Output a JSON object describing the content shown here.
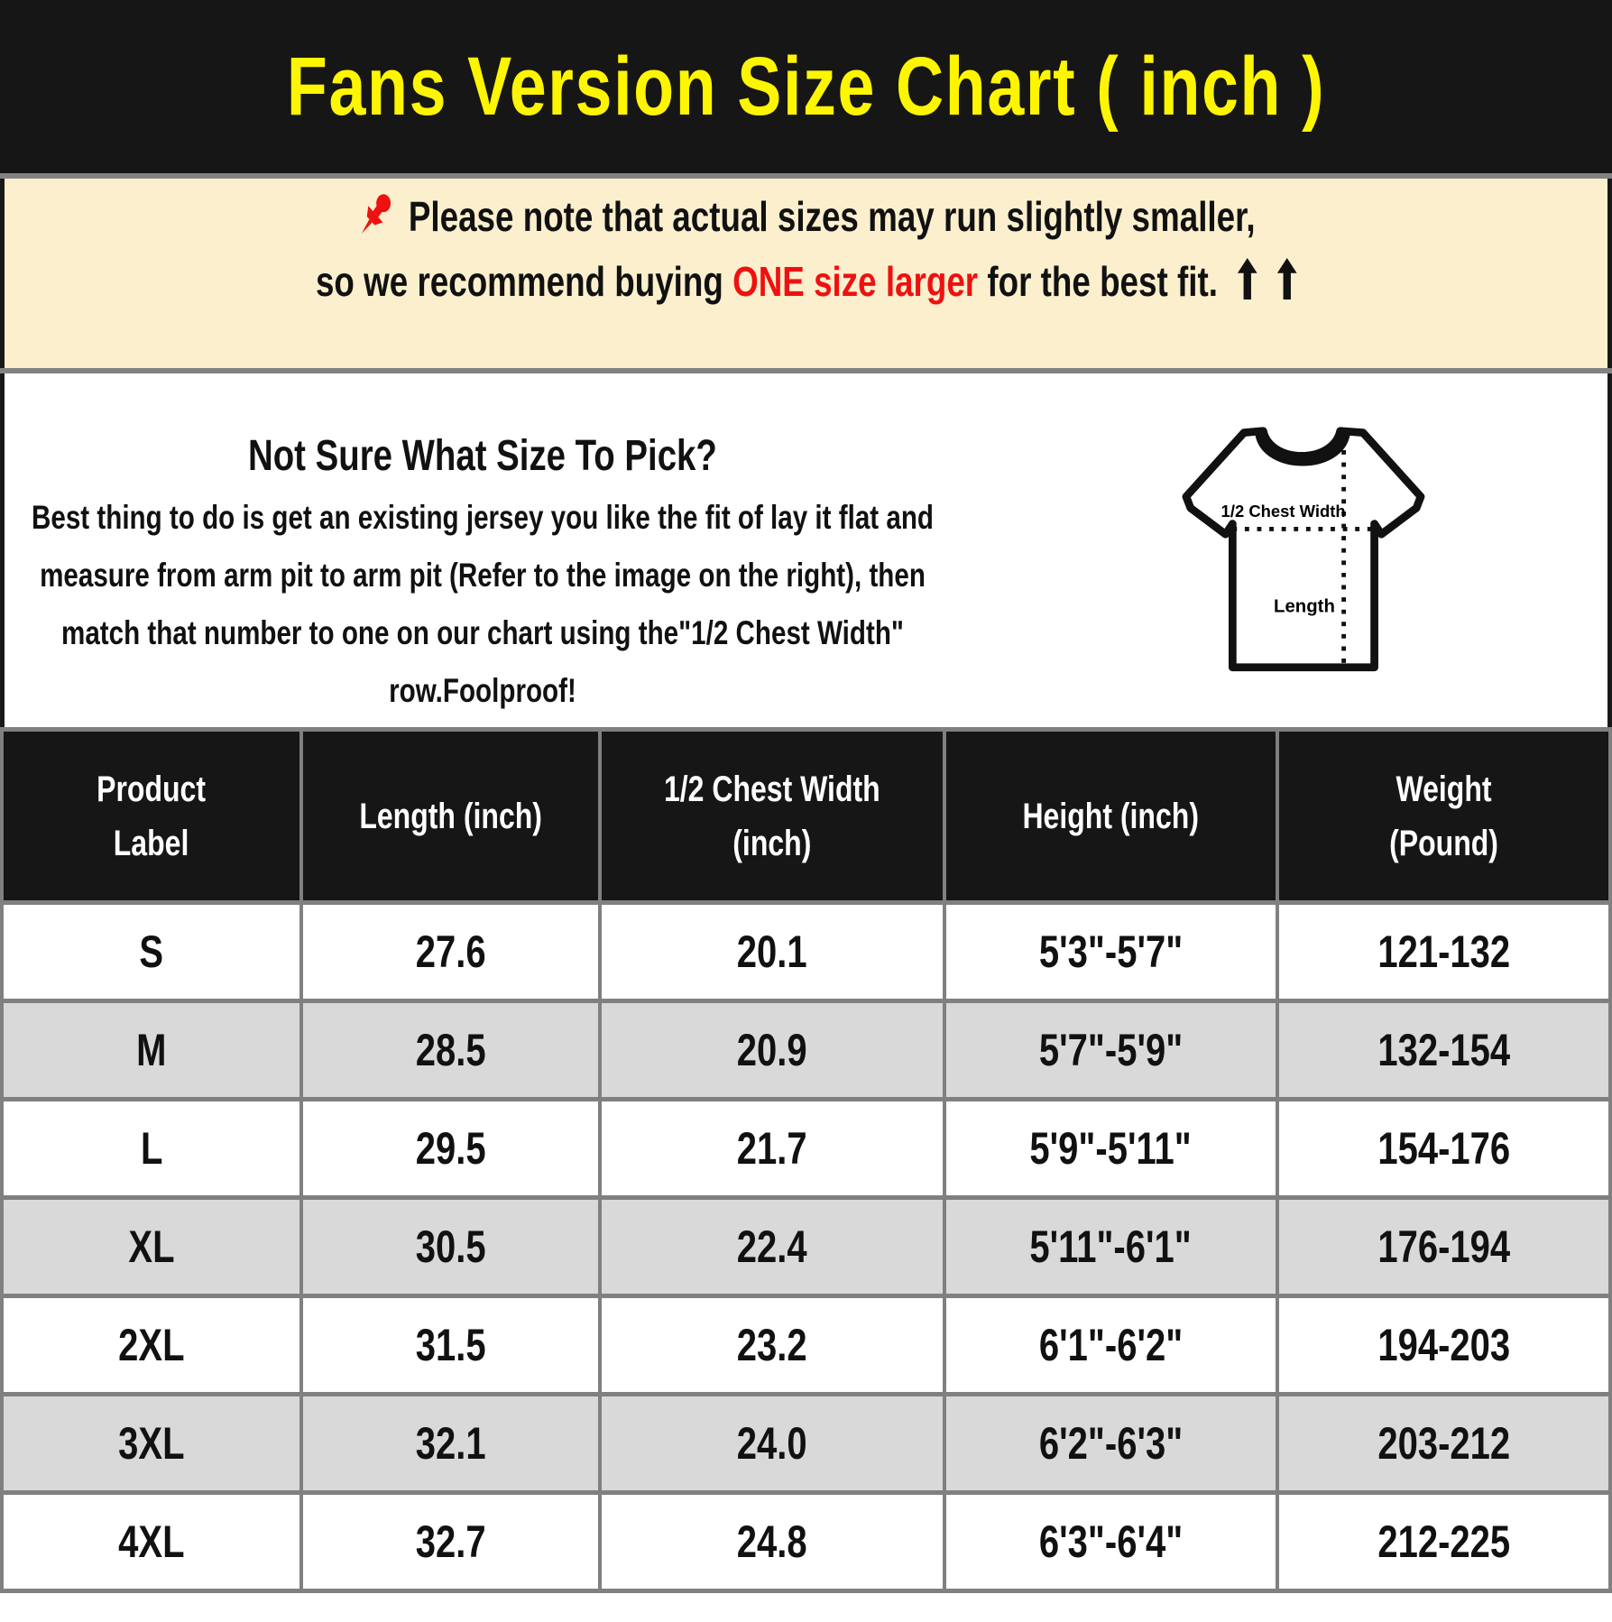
{
  "title": "Fans Version Size Chart ( inch )",
  "notice": {
    "line1": "Please note that actual sizes may run slightly smaller,",
    "line2_prefix": "so we recommend buying ",
    "line2_highlight": "ONE size larger",
    "line2_suffix": " for the best fit.",
    "pin_icon": "red-pushpin",
    "arrow_icon": "bold-up-arrow"
  },
  "guide": {
    "heading": "Not Sure What Size To Pick?",
    "body": "Best thing to do is get an existing jersey you like the fit of lay it flat and\nmeasure from arm pit to arm pit (Refer to the image on the right), then\nmatch that number to one on our chart using the\"1/2 Chest Width\"\nrow.Foolproof!",
    "shirt_labels": {
      "chest": "1/2 Chest Width",
      "length": "Length"
    }
  },
  "size_table": {
    "columns": [
      "Product\nLabel",
      "Length (inch)",
      "1/2 Chest Width\n(inch)",
      "Height (inch)",
      "Weight\n(Pound)"
    ],
    "rows": [
      [
        "S",
        "27.6",
        "20.1",
        "5'3\"-5'7\"",
        "121-132"
      ],
      [
        "M",
        "28.5",
        "20.9",
        "5'7\"-5'9\"",
        "132-154"
      ],
      [
        "L",
        "29.5",
        "21.7",
        "5'9\"-5'11\"",
        "154-176"
      ],
      [
        "XL",
        "30.5",
        "22.4",
        "5'11\"-6'1\"",
        "176-194"
      ],
      [
        "2XL",
        "31.5",
        "23.2",
        "6'1\"-6'2\"",
        "194-203"
      ],
      [
        "3XL",
        "32.1",
        "24.0",
        "6'2\"-6'3\"",
        "203-212"
      ],
      [
        "4XL",
        "32.7",
        "24.8",
        "6'3\"-6'4\"",
        "212-225"
      ]
    ]
  },
  "colors": {
    "banner_bg": "#161616",
    "title_yellow": "#fdf501",
    "notice_bg": "#fcefcd",
    "highlight_red": "#ee1111",
    "row_alt_gray": "#d9d9d9",
    "grid_gray": "#808080"
  }
}
